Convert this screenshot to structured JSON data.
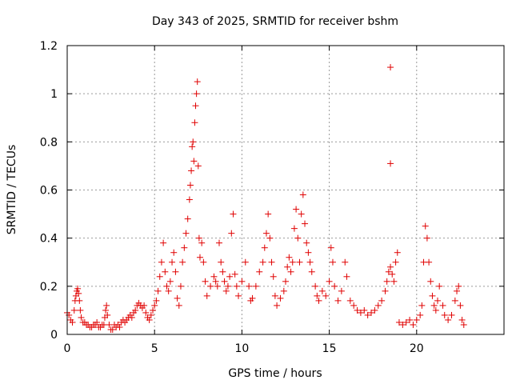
{
  "chart_data": {
    "type": "scatter",
    "title": "Day 343 of 2025, SRMTID for receiver bshm",
    "xlabel": "GPS time / hours",
    "ylabel": "SRMTID / TECUs",
    "xlim": [
      0,
      25
    ],
    "ylim": [
      0,
      1.2
    ],
    "xticks": [
      0,
      5,
      10,
      15,
      20
    ],
    "xtick_labels": [
      "0",
      "5",
      "10",
      "15",
      "20"
    ],
    "yticks": [
      0,
      0.2,
      0.4,
      0.6,
      0.8,
      1,
      1.2
    ],
    "ytick_labels": [
      "0",
      "0.2",
      "0.4",
      "0.6",
      "0.8",
      "1",
      "1.2"
    ],
    "grid": true,
    "marker": "+",
    "series": [
      {
        "name": "SRMTID",
        "color": "#e00000",
        "points": [
          [
            0.0,
            0.09
          ],
          [
            0.1,
            0.08
          ],
          [
            0.2,
            0.06
          ],
          [
            0.3,
            0.05
          ],
          [
            0.4,
            0.1
          ],
          [
            0.45,
            0.14
          ],
          [
            0.5,
            0.16
          ],
          [
            0.55,
            0.18
          ],
          [
            0.6,
            0.19
          ],
          [
            0.65,
            0.17
          ],
          [
            0.7,
            0.14
          ],
          [
            0.75,
            0.1
          ],
          [
            0.8,
            0.07
          ],
          [
            0.9,
            0.05
          ],
          [
            1.0,
            0.05
          ],
          [
            1.1,
            0.04
          ],
          [
            1.2,
            0.04
          ],
          [
            1.3,
            0.03
          ],
          [
            1.4,
            0.03
          ],
          [
            1.5,
            0.04
          ],
          [
            1.6,
            0.04
          ],
          [
            1.7,
            0.05
          ],
          [
            1.8,
            0.03
          ],
          [
            1.9,
            0.03
          ],
          [
            2.0,
            0.04
          ],
          [
            2.1,
            0.04
          ],
          [
            2.15,
            0.07
          ],
          [
            2.2,
            0.1
          ],
          [
            2.25,
            0.12
          ],
          [
            2.3,
            0.08
          ],
          [
            2.4,
            0.04
          ],
          [
            2.5,
            0.02
          ],
          [
            2.6,
            0.02
          ],
          [
            2.7,
            0.04
          ],
          [
            2.8,
            0.03
          ],
          [
            2.9,
            0.04
          ],
          [
            3.0,
            0.03
          ],
          [
            3.1,
            0.05
          ],
          [
            3.2,
            0.06
          ],
          [
            3.3,
            0.05
          ],
          [
            3.4,
            0.06
          ],
          [
            3.5,
            0.07
          ],
          [
            3.6,
            0.08
          ],
          [
            3.7,
            0.07
          ],
          [
            3.8,
            0.09
          ],
          [
            3.9,
            0.1
          ],
          [
            4.0,
            0.12
          ],
          [
            4.1,
            0.13
          ],
          [
            4.2,
            0.12
          ],
          [
            4.3,
            0.11
          ],
          [
            4.4,
            0.12
          ],
          [
            4.5,
            0.09
          ],
          [
            4.6,
            0.07
          ],
          [
            4.7,
            0.06
          ],
          [
            4.8,
            0.08
          ],
          [
            4.9,
            0.1
          ],
          [
            5.0,
            0.12
          ],
          [
            5.1,
            0.14
          ],
          [
            5.2,
            0.18
          ],
          [
            5.3,
            0.24
          ],
          [
            5.4,
            0.3
          ],
          [
            5.5,
            0.38
          ],
          [
            5.6,
            0.26
          ],
          [
            5.7,
            0.2
          ],
          [
            5.8,
            0.18
          ],
          [
            5.9,
            0.22
          ],
          [
            6.0,
            0.3
          ],
          [
            6.1,
            0.34
          ],
          [
            6.2,
            0.26
          ],
          [
            6.3,
            0.15
          ],
          [
            6.4,
            0.12
          ],
          [
            6.5,
            0.2
          ],
          [
            6.6,
            0.3
          ],
          [
            6.7,
            0.36
          ],
          [
            6.8,
            0.42
          ],
          [
            6.9,
            0.48
          ],
          [
            7.0,
            0.56
          ],
          [
            7.05,
            0.62
          ],
          [
            7.1,
            0.68
          ],
          [
            7.15,
            0.78
          ],
          [
            7.2,
            0.8
          ],
          [
            7.25,
            0.72
          ],
          [
            7.3,
            0.88
          ],
          [
            7.35,
            0.95
          ],
          [
            7.4,
            1.0
          ],
          [
            7.45,
            1.05
          ],
          [
            7.5,
            0.7
          ],
          [
            7.55,
            0.4
          ],
          [
            7.6,
            0.32
          ],
          [
            7.7,
            0.38
          ],
          [
            7.8,
            0.3
          ],
          [
            7.9,
            0.22
          ],
          [
            8.0,
            0.16
          ],
          [
            8.2,
            0.2
          ],
          [
            8.4,
            0.24
          ],
          [
            8.5,
            0.22
          ],
          [
            8.6,
            0.2
          ],
          [
            8.7,
            0.38
          ],
          [
            8.8,
            0.3
          ],
          [
            8.9,
            0.26
          ],
          [
            9.0,
            0.22
          ],
          [
            9.1,
            0.18
          ],
          [
            9.2,
            0.2
          ],
          [
            9.3,
            0.24
          ],
          [
            9.4,
            0.42
          ],
          [
            9.5,
            0.5
          ],
          [
            9.6,
            0.25
          ],
          [
            9.7,
            0.2
          ],
          [
            9.8,
            0.16
          ],
          [
            10.0,
            0.22
          ],
          [
            10.2,
            0.3
          ],
          [
            10.4,
            0.2
          ],
          [
            10.5,
            0.14
          ],
          [
            10.6,
            0.15
          ],
          [
            10.8,
            0.2
          ],
          [
            11.0,
            0.26
          ],
          [
            11.2,
            0.3
          ],
          [
            11.3,
            0.36
          ],
          [
            11.4,
            0.42
          ],
          [
            11.5,
            0.5
          ],
          [
            11.6,
            0.4
          ],
          [
            11.7,
            0.3
          ],
          [
            11.8,
            0.24
          ],
          [
            11.9,
            0.16
          ],
          [
            12.0,
            0.12
          ],
          [
            12.2,
            0.15
          ],
          [
            12.4,
            0.18
          ],
          [
            12.5,
            0.22
          ],
          [
            12.6,
            0.28
          ],
          [
            12.7,
            0.32
          ],
          [
            12.8,
            0.26
          ],
          [
            12.9,
            0.3
          ],
          [
            13.0,
            0.44
          ],
          [
            13.1,
            0.52
          ],
          [
            13.2,
            0.4
          ],
          [
            13.3,
            0.3
          ],
          [
            13.4,
            0.5
          ],
          [
            13.5,
            0.58
          ],
          [
            13.6,
            0.46
          ],
          [
            13.7,
            0.38
          ],
          [
            13.8,
            0.34
          ],
          [
            13.9,
            0.3
          ],
          [
            14.0,
            0.26
          ],
          [
            14.2,
            0.2
          ],
          [
            14.3,
            0.16
          ],
          [
            14.4,
            0.14
          ],
          [
            14.6,
            0.18
          ],
          [
            14.8,
            0.16
          ],
          [
            15.0,
            0.22
          ],
          [
            15.1,
            0.36
          ],
          [
            15.2,
            0.3
          ],
          [
            15.3,
            0.2
          ],
          [
            15.5,
            0.14
          ],
          [
            15.7,
            0.18
          ],
          [
            15.9,
            0.3
          ],
          [
            16.0,
            0.24
          ],
          [
            16.2,
            0.14
          ],
          [
            16.4,
            0.12
          ],
          [
            16.6,
            0.1
          ],
          [
            16.8,
            0.09
          ],
          [
            17.0,
            0.1
          ],
          [
            17.2,
            0.08
          ],
          [
            17.4,
            0.09
          ],
          [
            17.6,
            0.1
          ],
          [
            17.8,
            0.12
          ],
          [
            18.0,
            0.14
          ],
          [
            18.2,
            0.18
          ],
          [
            18.3,
            0.22
          ],
          [
            18.4,
            0.26
          ],
          [
            18.5,
            0.28
          ],
          [
            18.6,
            0.25
          ],
          [
            18.7,
            0.22
          ],
          [
            18.8,
            0.3
          ],
          [
            18.9,
            0.34
          ],
          [
            19.0,
            0.05
          ],
          [
            19.2,
            0.04
          ],
          [
            19.4,
            0.05
          ],
          [
            19.6,
            0.06
          ],
          [
            19.8,
            0.04
          ],
          [
            20.0,
            0.06
          ],
          [
            20.2,
            0.08
          ],
          [
            20.3,
            0.12
          ],
          [
            20.4,
            0.3
          ],
          [
            20.5,
            0.45
          ],
          [
            20.6,
            0.4
          ],
          [
            20.7,
            0.3
          ],
          [
            20.8,
            0.22
          ],
          [
            20.9,
            0.16
          ],
          [
            21.0,
            0.12
          ],
          [
            21.1,
            0.1
          ],
          [
            21.2,
            0.14
          ],
          [
            21.3,
            0.2
          ],
          [
            21.5,
            0.12
          ],
          [
            21.6,
            0.08
          ],
          [
            21.8,
            0.06
          ],
          [
            22.0,
            0.08
          ],
          [
            22.2,
            0.14
          ],
          [
            22.3,
            0.18
          ],
          [
            22.4,
            0.2
          ],
          [
            22.5,
            0.12
          ],
          [
            22.6,
            0.06
          ],
          [
            22.7,
            0.04
          ],
          [
            18.5,
            1.11
          ],
          [
            18.5,
            0.71
          ]
        ]
      }
    ]
  }
}
